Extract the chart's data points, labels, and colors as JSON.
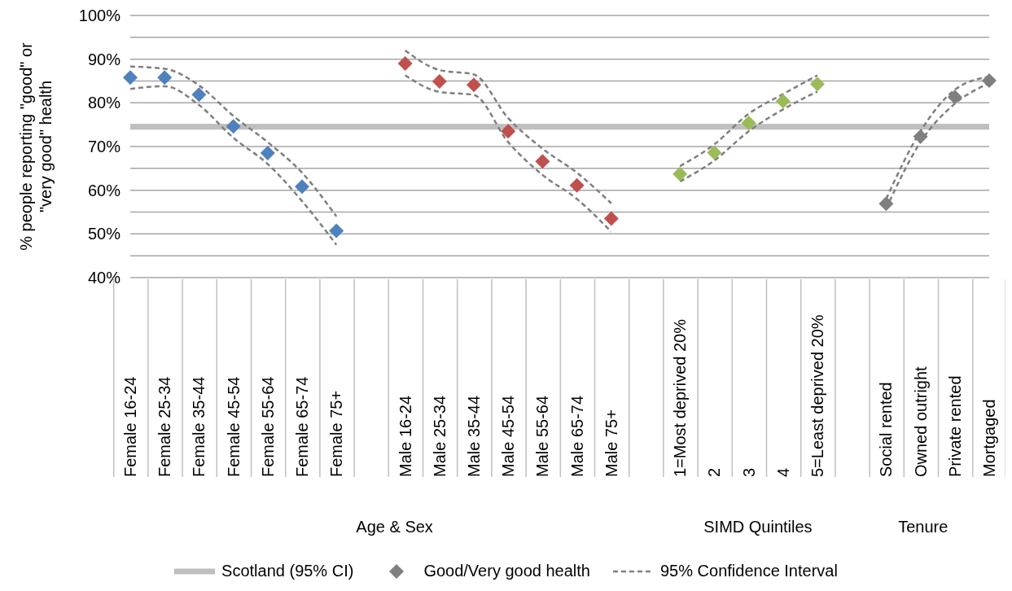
{
  "chart_data": {
    "type": "scatter",
    "ylabel": "% people reporting \"good\" or \"very good\" health",
    "categories": [
      "Female 16-24",
      "Female 25-34",
      "Female 35-44",
      "Female 45-54",
      "Female 55-64",
      "Female 65-74",
      "Female 75+",
      null,
      "Male 16-24",
      "Male 25-34",
      "Male 35-44",
      "Male 45-54",
      "Male 55-64",
      "Male 65-74",
      "Male 75+",
      null,
      "1=Most deprived 20%",
      "2",
      "3",
      "4",
      "5=Least deprived 20%",
      null,
      "Social rented",
      "Owned outright",
      "Private rented",
      "Mortgaged"
    ],
    "series": [
      {
        "name": "Good/Very good health",
        "color": "#7f7f7f",
        "colors": [
          "#4f81bd",
          "#4f81bd",
          "#4f81bd",
          "#4f81bd",
          "#4f81bd",
          "#4f81bd",
          "#4f81bd",
          null,
          "#c0504d",
          "#c0504d",
          "#c0504d",
          "#c0504d",
          "#c0504d",
          "#c0504d",
          "#c0504d",
          null,
          "#9bbb59",
          "#9bbb59",
          "#9bbb59",
          "#9bbb59",
          "#9bbb59",
          null,
          "#7f7f7f",
          "#7f7f7f",
          "#7f7f7f",
          "#7f7f7f"
        ],
        "marker": "diamond",
        "values": [
          85.8,
          85.8,
          81.9,
          74.6,
          68.5,
          60.8,
          50.7,
          null,
          89.0,
          84.9,
          84.1,
          73.5,
          66.6,
          61.1,
          53.5,
          null,
          63.7,
          68.6,
          75.4,
          80.4,
          84.3,
          null,
          56.9,
          72.3,
          81.3,
          85.1
        ]
      },
      {
        "name": "95% Confidence Interval",
        "type": "line",
        "color": "#7f7f7f",
        "line_style": "dashed",
        "marker": "none",
        "values": [
          88.3,
          87.8,
          84.0,
          77.0,
          71.0,
          64.0,
          54.0,
          null,
          92.0,
          87.5,
          86.5,
          76.5,
          69.5,
          64.0,
          57.0,
          null,
          65.5,
          70.5,
          77.5,
          82.0,
          86.3,
          null,
          58.0,
          73.5,
          83.0,
          86.0
        ]
      },
      {
        "type": "line",
        "color": "#7f7f7f",
        "line_style": "dashed",
        "marker": "none",
        "values": [
          83.2,
          83.8,
          79.5,
          72.0,
          66.0,
          57.5,
          47.5,
          null,
          86.3,
          82.5,
          81.8,
          71.0,
          63.5,
          58.0,
          50.5,
          null,
          62.0,
          66.8,
          73.5,
          78.5,
          82.6,
          null,
          55.8,
          71.0,
          79.8,
          84.5
        ]
      }
    ],
    "ylim": [
      40,
      100
    ],
    "yticks": [
      {
        "value": 40,
        "label": "40%"
      },
      {
        "value": 45,
        "label": null
      },
      {
        "value": 50,
        "label": "50%"
      },
      {
        "value": 55,
        "label": null
      },
      {
        "value": 60,
        "label": "60%"
      },
      {
        "value": 65,
        "label": null
      },
      {
        "value": 70,
        "label": "70%"
      },
      {
        "value": 75,
        "label": null
      },
      {
        "value": 80,
        "label": "80%"
      },
      {
        "value": 85,
        "label": null
      },
      {
        "value": 90,
        "label": "90%"
      },
      {
        "value": 95,
        "label": null
      },
      {
        "value": 100,
        "label": "100%"
      }
    ],
    "grid": "y",
    "ref_lines": [
      {
        "axis": "y",
        "value": 74.5,
        "label": "Scotland (95% CI)",
        "color": "#bfbfbf"
      }
    ],
    "annotations": [
      "Age & Sex",
      "SIMD Quintiles",
      "Tenure"
    ],
    "legend": "bottom"
  }
}
